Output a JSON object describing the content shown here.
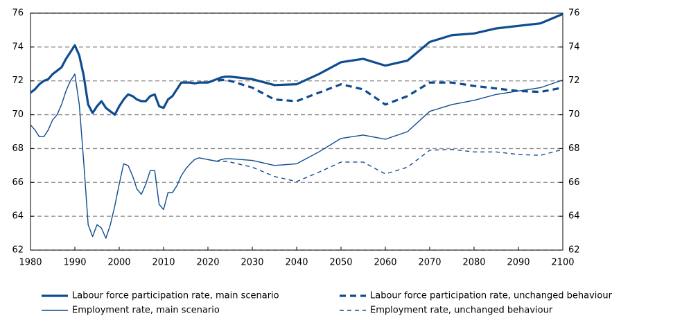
{
  "chart_data": {
    "type": "line",
    "x": [
      1980,
      1981,
      1982,
      1983,
      1984,
      1985,
      1986,
      1987,
      1988,
      1989,
      1990,
      1991,
      1992,
      1993,
      1994,
      1995,
      1996,
      1997,
      1998,
      1999,
      2000,
      2001,
      2002,
      2003,
      2004,
      2005,
      2006,
      2007,
      2008,
      2009,
      2010,
      2011,
      2012,
      2013,
      2014,
      2015,
      2016,
      2017,
      2018,
      2019,
      2020,
      2021,
      2022,
      2023,
      2024,
      2025,
      2030,
      2035,
      2040,
      2045,
      2050,
      2055,
      2060,
      2065,
      2070,
      2075,
      2080,
      2085,
      2090,
      2095,
      2100
    ],
    "series": [
      {
        "name": "Labour force participation rate, main scenario",
        "color": "#0f4c8f",
        "line_style": "solid",
        "line_width": 3.2,
        "values": [
          71.3,
          71.5,
          71.8,
          72.0,
          72.1,
          72.4,
          72.6,
          72.8,
          73.3,
          73.7,
          74.1,
          73.5,
          72.3,
          70.6,
          70.1,
          70.5,
          70.8,
          70.4,
          70.2,
          70.0,
          70.5,
          70.9,
          71.2,
          71.1,
          70.9,
          70.8,
          70.8,
          71.1,
          71.2,
          70.5,
          70.4,
          70.9,
          71.1,
          71.5,
          71.9,
          71.9,
          71.9,
          71.85,
          71.9,
          71.9,
          71.9,
          72.0,
          72.1,
          72.2,
          72.25,
          72.25,
          72.1,
          71.75,
          71.8,
          72.4,
          73.1,
          73.3,
          72.9,
          73.2,
          74.3,
          74.7,
          74.8,
          75.1,
          75.25,
          75.4,
          75.95
        ]
      },
      {
        "name": "Labour force participation rate, unchanged behaviour",
        "color": "#0f4c8f",
        "line_style": "dashed",
        "line_width": 3.2,
        "values": [
          null,
          null,
          null,
          null,
          null,
          null,
          null,
          null,
          null,
          null,
          null,
          null,
          null,
          null,
          null,
          null,
          null,
          null,
          null,
          null,
          null,
          null,
          null,
          null,
          null,
          null,
          null,
          null,
          null,
          null,
          null,
          null,
          null,
          null,
          null,
          null,
          null,
          null,
          null,
          null,
          71.9,
          72.0,
          72.0,
          72.05,
          72.05,
          72.0,
          71.6,
          70.9,
          70.8,
          71.3,
          71.8,
          71.5,
          70.6,
          71.1,
          71.9,
          71.9,
          71.7,
          71.55,
          71.4,
          71.35,
          71.6
        ]
      },
      {
        "name": "Employment rate, main scenario",
        "color": "#0f4c8f",
        "line_style": "solid",
        "line_width": 1.4,
        "values": [
          69.4,
          69.1,
          68.7,
          68.7,
          69.1,
          69.7,
          70.0,
          70.6,
          71.4,
          72.0,
          72.4,
          70.6,
          67.2,
          63.5,
          62.8,
          63.5,
          63.3,
          62.7,
          63.5,
          64.6,
          65.9,
          67.1,
          67.0,
          66.4,
          65.6,
          65.3,
          65.9,
          66.7,
          66.7,
          64.7,
          64.4,
          65.4,
          65.4,
          65.8,
          66.4,
          66.8,
          67.1,
          67.35,
          67.45,
          67.4,
          67.35,
          67.3,
          67.25,
          67.35,
          67.4,
          67.4,
          67.3,
          67.0,
          67.1,
          67.8,
          68.6,
          68.8,
          68.55,
          69.0,
          70.2,
          70.6,
          70.85,
          71.2,
          71.4,
          71.6,
          72.05
        ]
      },
      {
        "name": "Employment rate, unchanged behaviour",
        "color": "#0f4c8f",
        "line_style": "dashed",
        "line_width": 1.4,
        "values": [
          null,
          null,
          null,
          null,
          null,
          null,
          null,
          null,
          null,
          null,
          null,
          null,
          null,
          null,
          null,
          null,
          null,
          null,
          null,
          null,
          null,
          null,
          null,
          null,
          null,
          null,
          null,
          null,
          null,
          null,
          null,
          null,
          null,
          null,
          null,
          null,
          null,
          null,
          null,
          null,
          67.35,
          67.3,
          67.25,
          67.25,
          67.25,
          67.2,
          66.9,
          66.35,
          66.05,
          66.6,
          67.2,
          67.2,
          66.5,
          66.9,
          67.9,
          67.95,
          67.8,
          67.8,
          67.65,
          67.6,
          67.95
        ]
      }
    ],
    "xlim": [
      1980,
      2100
    ],
    "xticks": [
      1980,
      1990,
      2000,
      2010,
      2020,
      2030,
      2040,
      2050,
      2060,
      2070,
      2080,
      2090,
      2100
    ],
    "ylim": [
      62,
      76
    ],
    "yticks": [
      62,
      64,
      66,
      68,
      70,
      72,
      74,
      76
    ],
    "y2lim": [
      62,
      76
    ],
    "y2ticks": [
      62,
      64,
      66,
      68,
      70,
      72,
      74,
      76
    ],
    "grid": true,
    "legend": "bottom"
  }
}
